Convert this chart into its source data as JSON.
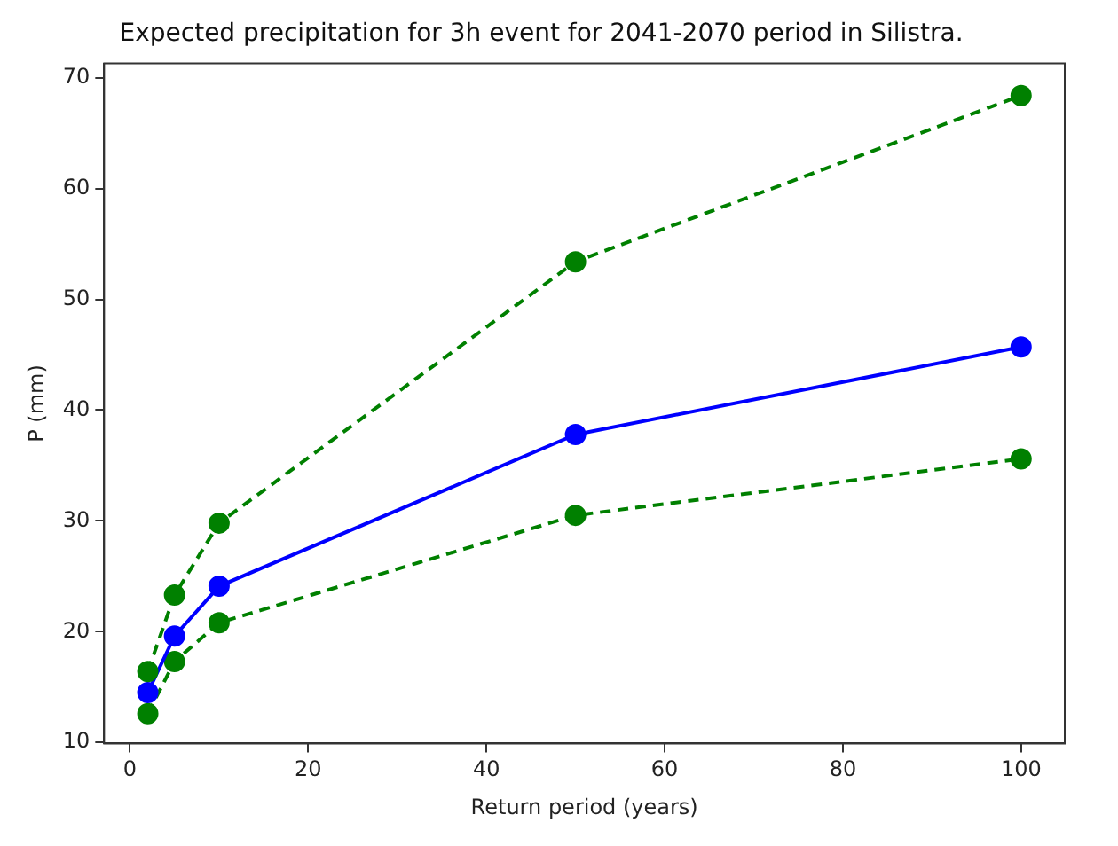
{
  "chart_data": {
    "type": "line",
    "title": "Expected precipitation for 3h event for 2041-2070 period in Silistra.",
    "xlabel": "Return period (years)",
    "ylabel": "P (mm)",
    "x": [
      2,
      5,
      10,
      50,
      100
    ],
    "series": [
      {
        "color": "#008000",
        "line_style": "dashed",
        "values": [
          16.4,
          23.3,
          29.8,
          53.4,
          68.4
        ]
      },
      {
        "color": "#0000ff",
        "line_style": "solid",
        "values": [
          14.5,
          19.6,
          24.1,
          37.8,
          45.7
        ]
      },
      {
        "color": "#008000",
        "line_style": "dashed",
        "values": [
          12.6,
          17.3,
          20.8,
          30.5,
          35.6
        ]
      }
    ],
    "xlim": [
      -2.9,
      104.9
    ],
    "xticks": [
      0,
      20,
      40,
      60,
      80,
      100
    ],
    "ylim": [
      9.9,
      71.3
    ],
    "yticks": [
      10,
      20,
      30,
      40,
      50,
      60,
      70
    ],
    "marker": "circle",
    "grid": false,
    "legend": false
  }
}
